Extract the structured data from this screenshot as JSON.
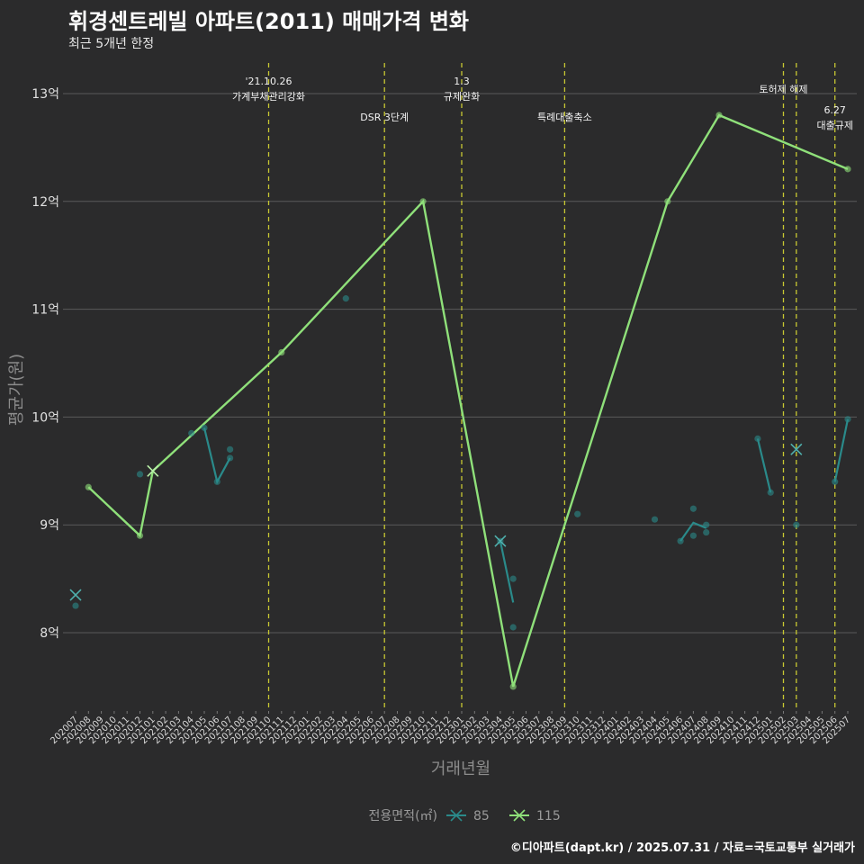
{
  "title": "휘경센트레빌 아파트(2011) 매매가격 변화",
  "subtitle": "최근 5개년 한정",
  "caption": "©디아파트(dapt.kr) / 2025.07.31 / 자료=국토교통부 실거래가",
  "chart_data": {
    "type": "line",
    "xlabel": "거래년월",
    "ylabel": "평균가(원)",
    "ylim": [
      7.2,
      13.3
    ],
    "yticks": [
      {
        "value": 8,
        "label": "8억"
      },
      {
        "value": 9,
        "label": "9억"
      },
      {
        "value": 10,
        "label": "10억"
      },
      {
        "value": 11,
        "label": "11억"
      },
      {
        "value": 12,
        "label": "12억"
      },
      {
        "value": 13,
        "label": "13억"
      }
    ],
    "categories": [
      "202007",
      "202008",
      "202009",
      "202010",
      "202011",
      "202012",
      "202101",
      "202102",
      "202103",
      "202104",
      "202105",
      "202106",
      "202107",
      "202108",
      "202109",
      "202110",
      "202111",
      "202112",
      "202201",
      "202202",
      "202203",
      "202204",
      "202205",
      "202206",
      "202207",
      "202208",
      "202209",
      "202210",
      "202211",
      "202212",
      "202301",
      "202302",
      "202303",
      "202304",
      "202305",
      "202306",
      "202307",
      "202308",
      "202309",
      "202310",
      "202311",
      "202312",
      "202401",
      "202402",
      "202403",
      "202404",
      "202405",
      "202406",
      "202407",
      "202408",
      "202409",
      "202410",
      "202411",
      "202412",
      "202501",
      "202502",
      "202503",
      "202504",
      "202505",
      "202506",
      "202507"
    ],
    "legend": {
      "title": "전용면적(㎡)",
      "entries": [
        "85",
        "115"
      ]
    },
    "colors": {
      "85": "#2a8a8a",
      "115": "#8fe07a",
      "vline": "#c8c832",
      "grid": "#5a5a5a"
    },
    "series": [
      {
        "name": "85",
        "line_segments": [
          [
            [
              10,
              9.9
            ],
            [
              11,
              9.4
            ],
            [
              12,
              9.62
            ]
          ],
          [
            [
              33,
              8.85
            ],
            [
              34,
              8.28
            ]
          ],
          [
            [
              47,
              8.85
            ],
            [
              48,
              9.02
            ],
            [
              49,
              8.97
            ]
          ],
          [
            [
              53,
              9.8
            ],
            [
              54,
              9.3
            ]
          ],
          [
            [
              59,
              9.4
            ],
            [
              60,
              9.98
            ]
          ]
        ],
        "points": [
          [
            0,
            8.25
          ],
          [
            5,
            9.47
          ],
          [
            9,
            9.85
          ],
          [
            10,
            9.9
          ],
          [
            11,
            9.4
          ],
          [
            12,
            9.7
          ],
          [
            12,
            9.62
          ],
          [
            21,
            11.1
          ],
          [
            33,
            8.85
          ],
          [
            34,
            8.5
          ],
          [
            34,
            8.05
          ],
          [
            39,
            9.1
          ],
          [
            45,
            9.05
          ],
          [
            47,
            8.85
          ],
          [
            48,
            9.15
          ],
          [
            48,
            8.9
          ],
          [
            49,
            9.0
          ],
          [
            49,
            8.93
          ],
          [
            53,
            9.8
          ],
          [
            54,
            9.3
          ],
          [
            56,
            9.0
          ],
          [
            59,
            9.4
          ],
          [
            60,
            9.98
          ]
        ],
        "cross_markers": [
          [
            0,
            8.35
          ],
          [
            33,
            8.85
          ],
          [
            56,
            9.7
          ]
        ]
      },
      {
        "name": "115",
        "line": [
          [
            1,
            9.35
          ],
          [
            5,
            8.9
          ],
          [
            6,
            9.5
          ],
          [
            16,
            10.6
          ],
          [
            27,
            12.0
          ],
          [
            34,
            7.5
          ],
          [
            46,
            12.0
          ],
          [
            50,
            12.8
          ],
          [
            60,
            12.3
          ]
        ],
        "points": [
          [
            1,
            9.35
          ],
          [
            5,
            8.9
          ],
          [
            16,
            10.6
          ],
          [
            27,
            12.0
          ],
          [
            34,
            7.5
          ],
          [
            46,
            12.0
          ],
          [
            50,
            12.8
          ],
          [
            60,
            12.3
          ]
        ],
        "cross_markers": [
          [
            6,
            9.5
          ]
        ]
      }
    ],
    "vlines": [
      {
        "x": 15,
        "label1": "'21.10.26",
        "label2": "가계부채관리강화",
        "level": 1
      },
      {
        "x": 24,
        "label1": "",
        "label2": "DSR 3단계",
        "level": 2
      },
      {
        "x": 30,
        "label1": "1.3",
        "label2": "규제완화",
        "level": 1
      },
      {
        "x": 38,
        "label1": "",
        "label2": "특례대출축소",
        "level": 2
      },
      {
        "x": 55,
        "label1": "",
        "label2": "토허제 해제",
        "level": 1
      },
      {
        "x": 56,
        "label1": "",
        "label2": "",
        "level": 0
      },
      {
        "x": 59,
        "label1": "6.27",
        "label2": "대출규제",
        "level": 3
      }
    ]
  }
}
